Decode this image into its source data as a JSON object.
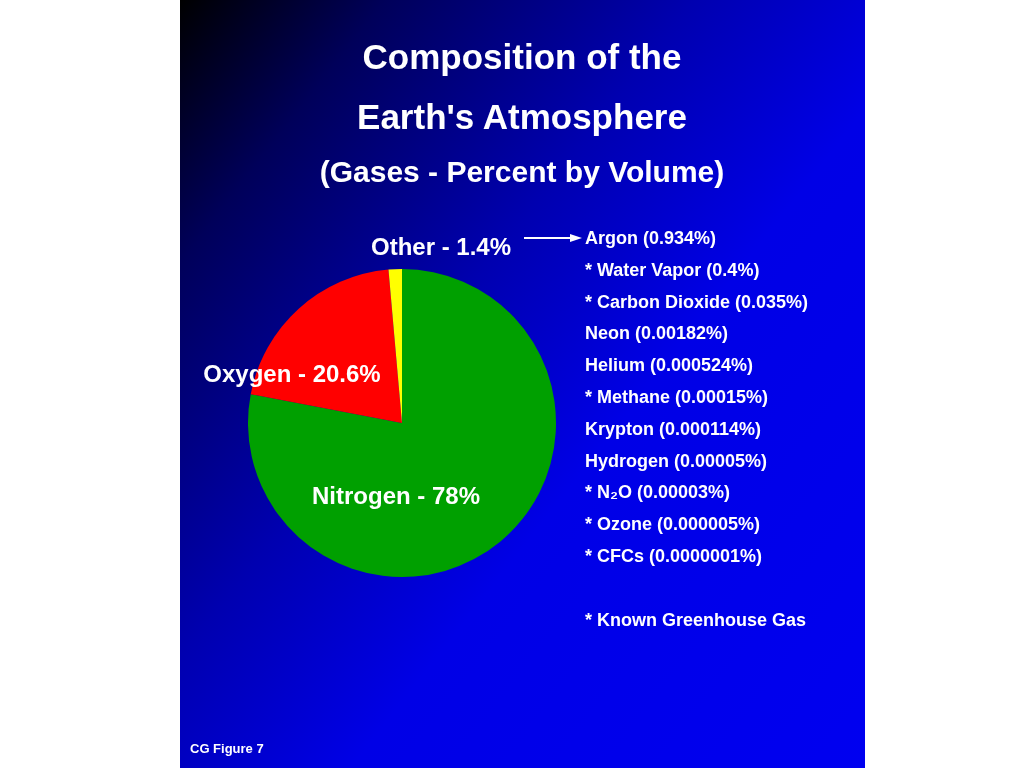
{
  "chart_data": {
    "type": "pie",
    "title": "Composition of the Earth's Atmosphere",
    "subtitle": "(Gases - Percent by Volume)",
    "categories": [
      "Nitrogen",
      "Oxygen",
      "Other"
    ],
    "values": [
      78,
      20.6,
      1.4
    ],
    "colors": [
      "#00a000",
      "#ff0000",
      "#ffff00"
    ],
    "value_labels": [
      "78%",
      "20.6%",
      "1.4%"
    ],
    "annotations": [
      "Argon (0.934%)",
      "* Water Vapor (0.4%)",
      "* Carbon Dioxide (0.035%)",
      "Neon (0.00182%)",
      "Helium (0.000524%)",
      "* Methane (0.00015%)",
      "Krypton (0.000114%)",
      "Hydrogen (0.00005%)",
      "* N₂O (0.00003%)",
      "* Ozone (0.000005%)",
      "* CFCs (0.0000001%)",
      "* Known Greenhouse Gas",
      "CG Figure 7"
    ]
  }
}
